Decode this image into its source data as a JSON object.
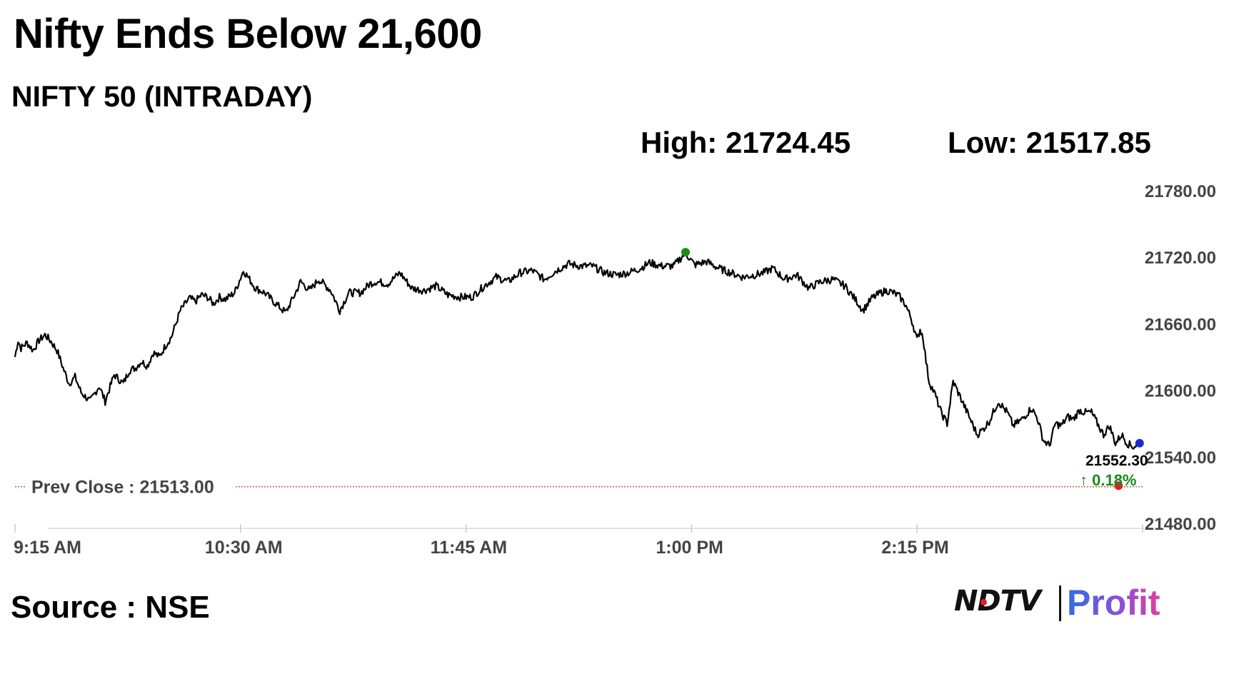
{
  "header": {
    "title": "Nifty Ends Below 21,600",
    "subtitle": "NIFTY 50 (INTRADAY)",
    "high_label": "High: 21724.45",
    "low_label": "Low: 21517.85"
  },
  "footer": {
    "source": "Source : NSE",
    "logo_brand": "NDTV",
    "logo_product": "Profit"
  },
  "colors": {
    "line": "#000000",
    "prev_close_line": "#c0392b",
    "high_marker": "#1a8a1a",
    "low_marker": "#e02020",
    "last_marker": "#1a2ad0",
    "change_positive": "#1a8a1a",
    "axis_text": "#444444"
  },
  "chart_data": {
    "type": "line",
    "title": "NIFTY 50 (INTRADAY)",
    "xlabel": "",
    "ylabel": "",
    "x_ticks": [
      "9:15 AM",
      "10:30 AM",
      "11:45 AM",
      "1:00 PM",
      "2:15 PM"
    ],
    "x_tick_minutes": [
      0,
      75,
      150,
      225,
      300
    ],
    "x_range_minutes": [
      0,
      375
    ],
    "ylim": [
      21480,
      21780
    ],
    "y_ticks": [
      "21780.00",
      "21720.00",
      "21660.00",
      "21600.00",
      "21540.00",
      "21480.00"
    ],
    "y_tick_values": [
      21780,
      21720,
      21660,
      21600,
      21540,
      21480
    ],
    "grid": false,
    "prev_close": {
      "label": "Prev Close : 21513.00",
      "value": 21513.0
    },
    "last": {
      "value_label": "21552.30",
      "change_label": "↑ 0.18%",
      "value": 21552.3
    },
    "high": {
      "value": 21724.45,
      "minute": 223
    },
    "low": {
      "value": 21517.85,
      "minute": 367
    },
    "series": [
      {
        "x": [
          0,
          1,
          2,
          4,
          6,
          8,
          10,
          12,
          14,
          16,
          18,
          20,
          22,
          25,
          28,
          30,
          33,
          36,
          38,
          40,
          42,
          44,
          46,
          48,
          50,
          52,
          55,
          58,
          60,
          62,
          64,
          66,
          68,
          70,
          73,
          76,
          80,
          83,
          86,
          90,
          93,
          95,
          98,
          101,
          105,
          108,
          111,
          115,
          118,
          120,
          124,
          128,
          132,
          136,
          140,
          144,
          148,
          152,
          156,
          160,
          164,
          168,
          172,
          176,
          180,
          184,
          188,
          192,
          196,
          200,
          204,
          208,
          211,
          215,
          219,
          223,
          226,
          230,
          234,
          238,
          242,
          246,
          249,
          252,
          256,
          260,
          264,
          268,
          272,
          276,
          280,
          282,
          285,
          288,
          290,
          292,
          294,
          296,
          298,
          299,
          300,
          301,
          302,
          303,
          304,
          306,
          308,
          310,
          312,
          315,
          318,
          320,
          322,
          324,
          327,
          330,
          332,
          335,
          338,
          340,
          342,
          344,
          346,
          348,
          350,
          352,
          354,
          356,
          358,
          360,
          362,
          364,
          366,
          368,
          370,
          372,
          374,
          375
        ],
        "values": [
          21630,
          21645,
          21638,
          21643,
          21636,
          21645,
          21650,
          21644,
          21636,
          21620,
          21606,
          21612,
          21598,
          21590,
          21604,
          21590,
          21614,
          21606,
          21618,
          21620,
          21626,
          21622,
          21634,
          21630,
          21640,
          21648,
          21672,
          21683,
          21680,
          21686,
          21684,
          21678,
          21684,
          21682,
          21688,
          21708,
          21692,
          21688,
          21680,
          21670,
          21686,
          21698,
          21690,
          21700,
          21690,
          21672,
          21688,
          21688,
          21696,
          21698,
          21696,
          21706,
          21692,
          21690,
          21694,
          21686,
          21684,
          21684,
          21694,
          21702,
          21698,
          21706,
          21708,
          21700,
          21708,
          21714,
          21712,
          21712,
          21706,
          21704,
          21706,
          21710,
          21715,
          21712,
          21712,
          21724,
          21713,
          21716,
          21710,
          21706,
          21702,
          21704,
          21706,
          21710,
          21700,
          21704,
          21692,
          21698,
          21700,
          21694,
          21680,
          21672,
          21683,
          21688,
          21690,
          21688,
          21685,
          21678,
          21665,
          21656,
          21645,
          21655,
          21648,
          21626,
          21608,
          21596,
          21580,
          21570,
          21608,
          21590,
          21572,
          21560,
          21565,
          21572,
          21590,
          21580,
          21568,
          21574,
          21584,
          21575,
          21555,
          21550,
          21570,
          21568,
          21576,
          21574,
          21582,
          21580,
          21580,
          21570,
          21560,
          21568,
          21552,
          21560,
          21552,
          21549,
          21552.3,
          21552.3
        ]
      }
    ]
  }
}
